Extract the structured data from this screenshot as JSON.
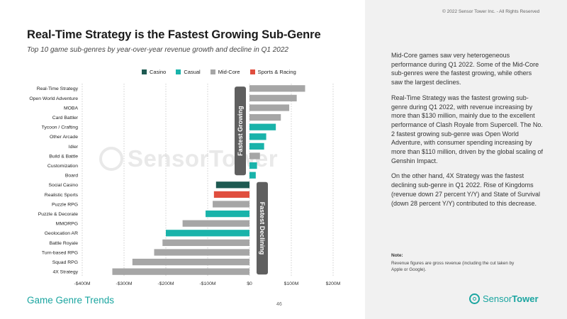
{
  "header": {
    "title": "Real-Time Strategy is the Fastest Growing Sub-Genre",
    "subtitle": "Top 10 game sub-genres by year-over-year revenue growth and decline in Q1 2022",
    "copyright": "© 2022 Sensor Tower Inc. - All Rights Reserved"
  },
  "colors": {
    "Casino": "#1e5a52",
    "Casual": "#19b3aa",
    "Mid-Core": "#a6a6a6",
    "Sports & Racing": "#e04e3e",
    "callout": "#5f5f5f"
  },
  "chart_data": {
    "type": "bar",
    "orientation": "horizontal",
    "title": "Top 10 game sub-genres by year-over-year revenue growth and decline in Q1 2022",
    "xlabel": "",
    "ylabel": "",
    "xlim": [
      -400,
      200
    ],
    "xticks": [
      -400,
      -300,
      -200,
      -100,
      0,
      100,
      200
    ],
    "xtick_labels": [
      "-$400M",
      "-$300M",
      "-$200M",
      "-$100M",
      "$0",
      "$100M",
      "$200M"
    ],
    "legend": [
      "Casino",
      "Casual",
      "Mid-Core",
      "Sports & Racing"
    ],
    "legend_position": "top",
    "grid": "vertical dotted",
    "callouts": [
      "Fastest Growing",
      "Fastest Declining"
    ],
    "categories": [
      "Real-Time Strategy",
      "Open World Adventure",
      "MOBA",
      "Card Battler",
      "Tycoon / Crafting",
      "Other Arcade",
      "Idler",
      "Build & Battle",
      "Customization",
      "Board",
      "Social Casino",
      "Realistic Sports",
      "Puzzle RPG",
      "Puzzle & Decorate",
      "MMORPG",
      "Geolocation AR",
      "Battle Royale",
      "Turn-based RPG",
      "Squad RPG",
      "4X Strategy"
    ],
    "values": [
      133,
      113,
      95,
      75,
      63,
      40,
      35,
      25,
      18,
      15,
      -80,
      -85,
      -88,
      -105,
      -160,
      -200,
      -208,
      -228,
      -280,
      -328
    ],
    "series_by_category": [
      "Mid-Core",
      "Mid-Core",
      "Mid-Core",
      "Mid-Core",
      "Casual",
      "Casual",
      "Casual",
      "Mid-Core",
      "Casual",
      "Casual",
      "Casino",
      "Sports & Racing",
      "Mid-Core",
      "Casual",
      "Mid-Core",
      "Casual",
      "Mid-Core",
      "Mid-Core",
      "Mid-Core",
      "Mid-Core"
    ]
  },
  "commentary": {
    "p1": "Mid-Core games saw very heterogeneous performance during Q1 2022. Some of the Mid-Core sub-genres were the fastest growing, while others saw the largest declines.",
    "p2": "Real-Time Strategy was the fastest growing sub-genre during Q1 2022, with revenue increasing by more than $130 million, mainly due to the excellent performance of Clash Royale from Supercell. The No. 2 fastest growing sub-genre was Open World Adventure, with consumer spending increasing by more than $110 million, driven by the global scaling of Genshin Impact.",
    "p3": "On the other hand, 4X Strategy was the fastest declining sub-genre in Q1 2022. Rise of Kingdoms (revenue down 27 percent Y/Y) and State of Survival (down 28 percent Y/Y) contributed to this decrease."
  },
  "note": {
    "title": "Note:",
    "text": "Revenue figures are gross revenue (including the cut taken by Apple or Google)."
  },
  "footer": {
    "section": "Game Genre Trends",
    "page_number": "46",
    "brand_regular": "Sensor",
    "brand_bold": "Tower",
    "watermark_regular": "Sensor",
    "watermark_bold": "Tower"
  }
}
